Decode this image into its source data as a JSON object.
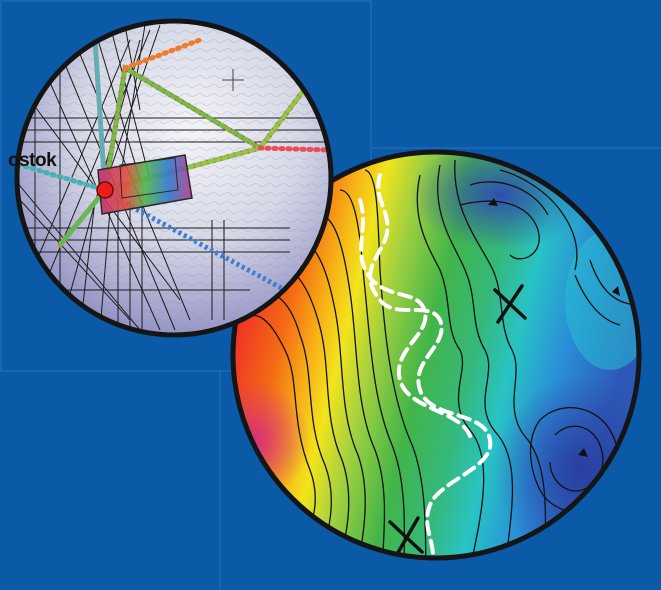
{
  "map_inset": {
    "station_label": "ostok"
  },
  "colors": {
    "background": "#0a5aa8",
    "circle_border": "#151515",
    "contour_line": "#111111",
    "dashed_outline": "#ffffff"
  }
}
